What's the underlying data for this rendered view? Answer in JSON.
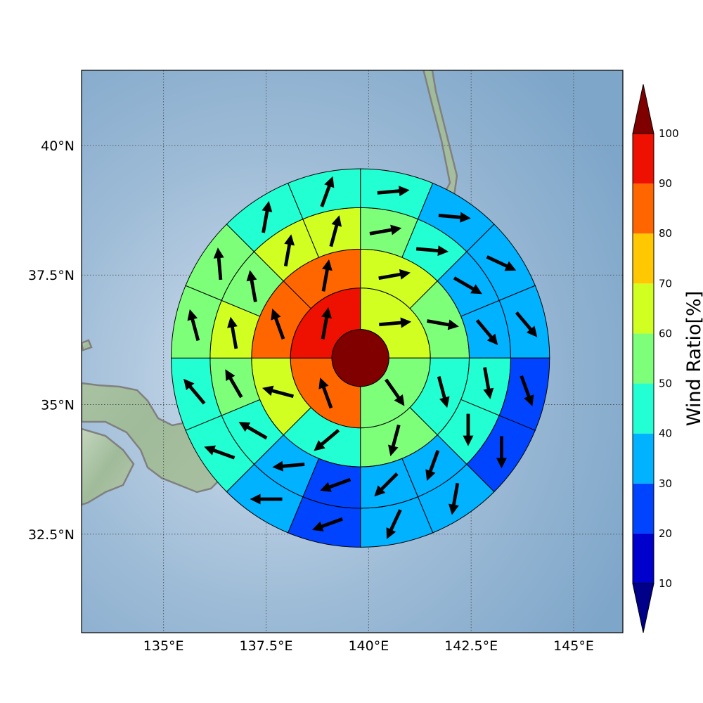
{
  "map": {
    "extent": {
      "lon": [
        133.0,
        146.2
      ],
      "lat": [
        30.6,
        41.45
      ]
    },
    "lon_ticks": [
      {
        "value": 135.0,
        "label": "135°E"
      },
      {
        "value": 137.5,
        "label": "137.5°E"
      },
      {
        "value": 140.0,
        "label": "140°E"
      },
      {
        "value": 142.5,
        "label": "142.5°E"
      },
      {
        "value": 145.0,
        "label": "145°E"
      }
    ],
    "lat_ticks": [
      {
        "value": 40.0,
        "label": "40°N"
      },
      {
        "value": 37.5,
        "label": "37.5°N"
      },
      {
        "value": 35.0,
        "label": "35°N"
      },
      {
        "value": 32.5,
        "label": "32.5°N"
      }
    ],
    "ocean_color": "#8fb1cf",
    "land_color": "#a9c4a3",
    "coast_color": "#808080"
  },
  "chart_data": {
    "type": "heatmap",
    "title": "",
    "variable": "Wind Ratio",
    "unit": "%",
    "center": {
      "lon": 139.8,
      "lat": 35.9
    },
    "radial_bands_deg_lat": [
      0.55,
      1.35,
      2.1,
      2.9,
      3.65
    ],
    "rings": [
      {
        "ring": 1,
        "sectors": 4,
        "values": [
          65,
          55,
          85,
          95
        ],
        "vector_dirs_deg": [
          85,
          145,
          340,
          10
        ]
      },
      {
        "ring": 2,
        "sectors": 8,
        "values": [
          65,
          55,
          45,
          50,
          45,
          65,
          85,
          85
        ],
        "vector_dirs_deg": [
          80,
          100,
          165,
          195,
          230,
          285,
          340,
          10
        ]
      },
      {
        "ring": 3,
        "sectors": 16,
        "values": [
          55,
          45,
          35,
          35,
          45,
          45,
          35,
          35,
          25,
          35,
          45,
          55,
          65,
          55,
          65,
          65
        ],
        "vector_dirs_deg": [
          80,
          95,
          120,
          140,
          170,
          180,
          200,
          225,
          250,
          265,
          300,
          330,
          350,
          350,
          10,
          15
        ],
        "sector_offset_deg": 11.25
      },
      {
        "ring": 4,
        "sectors": 16,
        "values": [
          45,
          35,
          35,
          35,
          25,
          25,
          35,
          35,
          25,
          35,
          45,
          45,
          55,
          55,
          45,
          45
        ],
        "vector_dirs_deg": [
          85,
          95,
          115,
          140,
          160,
          180,
          190,
          205,
          250,
          270,
          290,
          320,
          345,
          355,
          10,
          20
        ],
        "sector_offset_deg": 11.25
      },
      {
        "ring": 5,
        "sectors": 16,
        "values": [
          35,
          35,
          25,
          25,
          15,
          25,
          25,
          25,
          25,
          25,
          35,
          45,
          45,
          45,
          45,
          45
        ],
        "vector_dirs_deg": [
          80,
          100,
          125,
          150,
          170,
          180,
          185,
          200,
          240,
          280,
          300,
          330,
          350,
          345,
          5,
          15
        ],
        "sector_offset_deg": 11.25
      }
    ],
    "core": {
      "value": 100,
      "color": "#800000"
    }
  },
  "colorbar": {
    "label": "Wind Ratio[%]",
    "ticks": [
      "10",
      "20",
      "30",
      "40",
      "50",
      "60",
      "70",
      "80",
      "90",
      "100"
    ],
    "levels": [
      10,
      20,
      30,
      40,
      50,
      60,
      70,
      80,
      90,
      100
    ],
    "colors": [
      "#0000cd",
      "#0044ff",
      "#00b2ff",
      "#22ffd2",
      "#7dff7a",
      "#d2ff22",
      "#ffc800",
      "#ff6600",
      "#ee1000"
    ],
    "under_color": "#000088",
    "over_color": "#800000"
  }
}
